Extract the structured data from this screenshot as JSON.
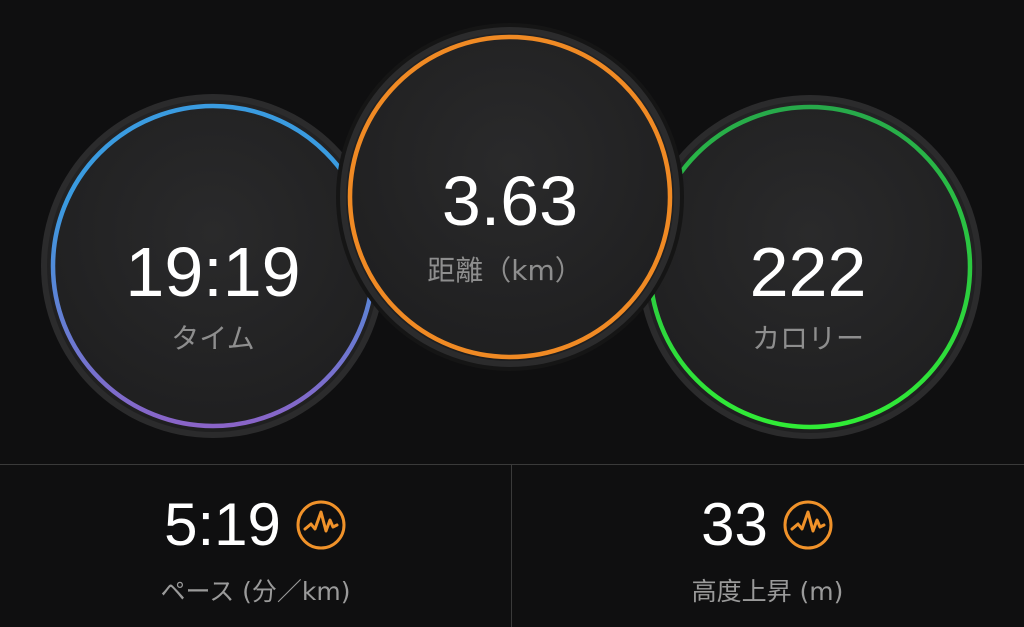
{
  "circles": [
    {
      "id": "time",
      "value": "19:19",
      "label": "タイム",
      "colors": [
        "#3a9be0",
        "#8a64c8"
      ]
    },
    {
      "id": "distance",
      "value": "3.63",
      "label": "距離（km）",
      "colors": [
        "#f08a24",
        "#f08a24"
      ]
    },
    {
      "id": "calories",
      "value": "222",
      "label": "カロリー",
      "colors": [
        "#25b04a",
        "#2ee83a"
      ]
    }
  ],
  "stats": [
    {
      "value": "5:19",
      "label": "ペース (分／km)",
      "icon": "performance-wave-icon"
    },
    {
      "value": "33",
      "label": "高度上昇 (m)",
      "icon": "performance-wave-icon"
    }
  ],
  "icon_color": "#f0922a"
}
